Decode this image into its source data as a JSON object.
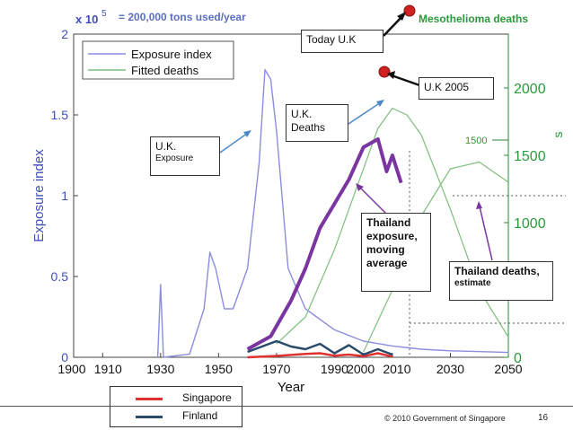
{
  "chart_data": {
    "type": "line",
    "xlabel": "Year",
    "ylabel_left": "Exposure index",
    "ylabel_right": "s",
    "left_multiplier": "x 10",
    "left_multiplier_exp": "5",
    "x_ticks": [
      "1900",
      "1910",
      "1930",
      "1950",
      "1970",
      "1990",
      "2000",
      "2010",
      "2030",
      "2050"
    ],
    "y_ticks_left": [
      "0",
      "0.5",
      "1",
      "1.5",
      "2"
    ],
    "y_ticks_right": [
      "0",
      "500",
      "1000",
      "1500",
      "2000"
    ],
    "xlim": [
      1900,
      2050
    ],
    "ylim_left": [
      0,
      2
    ],
    "ylim_right": [
      0,
      2400
    ],
    "legend": [
      "Exposure index",
      "Fitted deaths"
    ],
    "series": [
      {
        "name": "Exposure index",
        "color": "#8a8de0",
        "x": [
          1929,
          1930,
          1931,
          1940,
          1945,
          1947,
          1949,
          1952,
          1955,
          1960,
          1964,
          1966,
          1968,
          1970,
          1974,
          1980,
          1990,
          2000,
          2010,
          2020,
          2030,
          2050
        ],
        "y": [
          0,
          0.45,
          0,
          0.02,
          0.3,
          0.65,
          0.55,
          0.3,
          0.3,
          0.55,
          1.2,
          1.78,
          1.72,
          1.4,
          0.55,
          0.3,
          0.17,
          0.1,
          0.07,
          0.05,
          0.04,
          0.03
        ]
      },
      {
        "name": "Fitted deaths",
        "color": "#7fbf7f",
        "x": [
          1970,
          1980,
          1990,
          2000,
          2005,
          2010,
          2015,
          2020,
          2030,
          2040,
          2050
        ],
        "y": [
          100,
          300,
          800,
          1400,
          1700,
          1850,
          1800,
          1650,
          1100,
          500,
          150
        ]
      },
      {
        "name": "",
        "color": "#7fbf7f",
        "x": [
          2000,
          2010,
          2020,
          2030,
          2040,
          2050
        ],
        "y": [
          40,
          500,
          1050,
          1400,
          1450,
          1300
        ]
      },
      {
        "name": "",
        "color": "#7a35a0",
        "x": [
          1960,
          1968,
          1975,
          1980,
          1985,
          1990,
          1995,
          2000,
          2005,
          2008,
          2010,
          2013
        ],
        "y": [
          0.05,
          0.13,
          0.35,
          0.55,
          0.8,
          0.95,
          1.1,
          1.3,
          1.35,
          1.15,
          1.25,
          1.08
        ]
      },
      {
        "name": "Singapore",
        "color": "#e03030",
        "x": [
          1960,
          1970,
          1980,
          1985,
          1990,
          1995,
          2000,
          2005,
          2010
        ],
        "y": [
          0,
          10,
          25,
          30,
          12,
          20,
          8,
          30,
          5
        ]
      },
      {
        "name": "Finland",
        "color": "#2a4a6a",
        "x": [
          1960,
          1970,
          1975,
          1980,
          1985,
          1990,
          1995,
          2000,
          2005,
          2010
        ],
        "y": [
          40,
          120,
          80,
          60,
          100,
          30,
          90,
          20,
          60,
          20
        ]
      }
    ]
  },
  "annotations": {
    "top_note": "= 200,000 tons used/year",
    "mesothelioma": "Mesothelioma deaths",
    "today_uk": "Today U.K",
    "uk_2005": "U.K 2005",
    "uk_deaths_line1": "U.K.",
    "uk_deaths_line2": "Deaths",
    "uk_exposure_line1": "U.K.",
    "uk_exposure_line2": "Exposure",
    "thailand_exposure": [
      "Thailand",
      "exposure,",
      "moving",
      "average"
    ],
    "thailand_deaths_line1": "Thailand deaths,",
    "thailand_deaths_line2": "estimate",
    "label_1500": "1500"
  },
  "bottom_legend": [
    {
      "label": "Singapore",
      "color": "#e03030"
    },
    {
      "label": "Finland",
      "color": "#2a4a6a"
    }
  ],
  "footer": {
    "copyright": "© 2010 Government of Singapore",
    "page": "16"
  }
}
